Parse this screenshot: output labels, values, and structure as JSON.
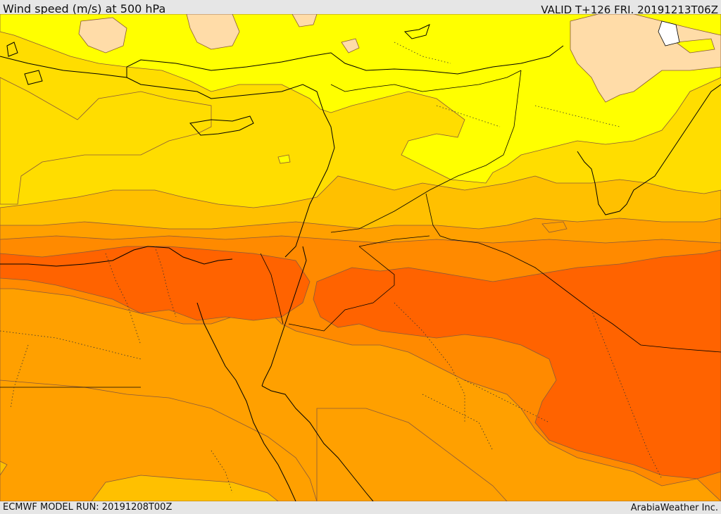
{
  "header": {
    "title": "Wind speed (m/s) at 500 hPa",
    "valid": "VALID T+126 FRI. 20191213T06Z"
  },
  "footer": {
    "model_run": "ECMWF MODEL RUN: 20191208T00Z",
    "credit": "ArabiaWeather Inc."
  },
  "map": {
    "field": "wind-speed-500hpa",
    "palette": {
      "band_light": "#ffdca8",
      "band_yellow": "#ffff00",
      "band_gold": "#ffdd00",
      "band_amber": "#ffc000",
      "band_orange": "#ffa000",
      "band_deep_orange": "#ff8a00",
      "band_red_orange": "#ff6300",
      "coastline": "#000000",
      "contour": "#8a5a3a"
    }
  }
}
